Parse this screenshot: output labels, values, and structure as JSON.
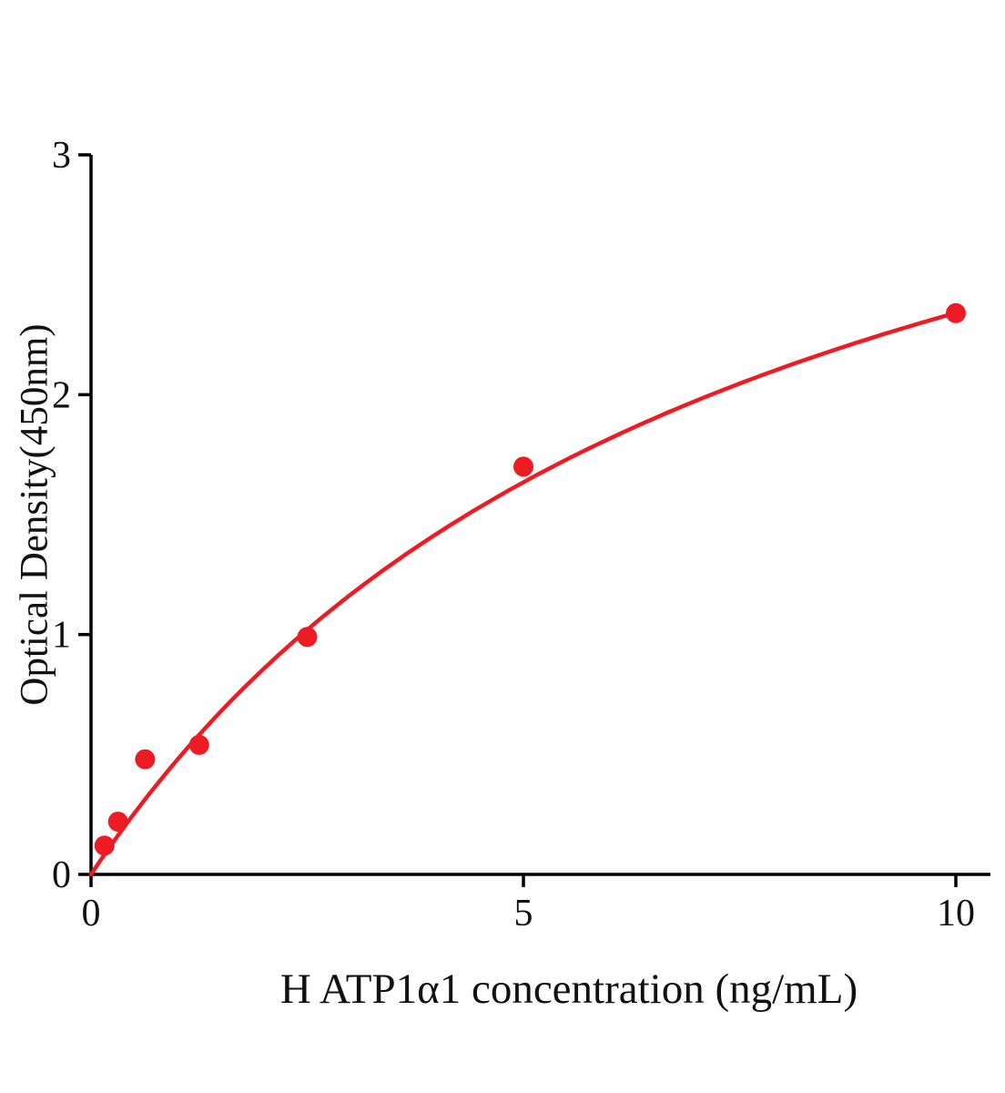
{
  "chart_data": {
    "type": "scatter",
    "title": "",
    "xlabel": "H ATP1α1 concentration (ng/mL)",
    "ylabel": "Optical Density(450nm)",
    "x": [
      0.156,
      0.313,
      0.625,
      1.25,
      2.5,
      5,
      10
    ],
    "y": [
      0.12,
      0.22,
      0.48,
      0.54,
      0.99,
      1.7,
      2.34
    ],
    "xlim": [
      0,
      10
    ],
    "ylim": [
      0,
      3
    ],
    "xticks": [
      0,
      5,
      10
    ],
    "yticks": [
      0,
      1,
      2,
      3
    ],
    "grid": false,
    "legend": "none",
    "point_color": "#ed1c24",
    "curve_color": "#ed1c24",
    "axis_color": "#000000",
    "fit": {
      "model": "saturating",
      "a": 4.12,
      "b": 7.6
    }
  }
}
